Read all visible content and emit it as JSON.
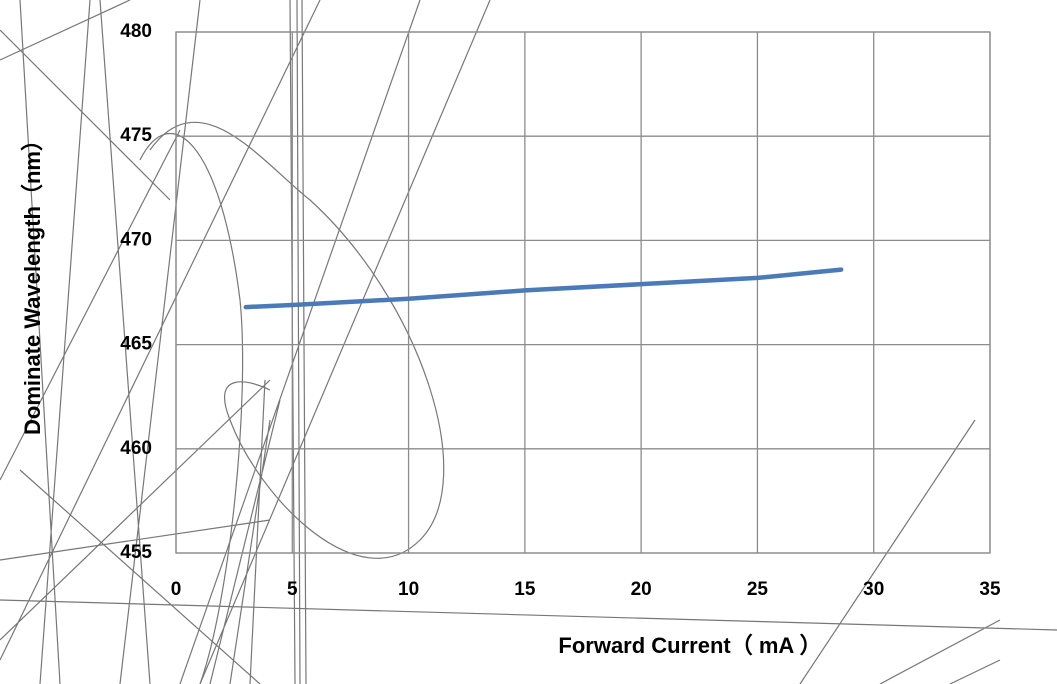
{
  "chart_data": {
    "type": "line",
    "x_label": "Forward Current（ mA ）",
    "y_label": "Dominate Wavelength（nm）",
    "series": [
      {
        "name": "Dominate Wavelength",
        "color": "#4a7ab8",
        "x": [
          3,
          5,
          10,
          15,
          20,
          25,
          28.6
        ],
        "values": [
          466.8,
          466.9,
          467.2,
          467.6,
          467.9,
          468.2,
          468.6
        ]
      }
    ],
    "xlim": [
      0,
      35
    ],
    "xticks": [
      0,
      5,
      10,
      15,
      20,
      25,
      30,
      35
    ],
    "ylim": [
      455,
      480
    ],
    "yticks": [
      455,
      460,
      465,
      470,
      475,
      480
    ],
    "grid": true
  }
}
